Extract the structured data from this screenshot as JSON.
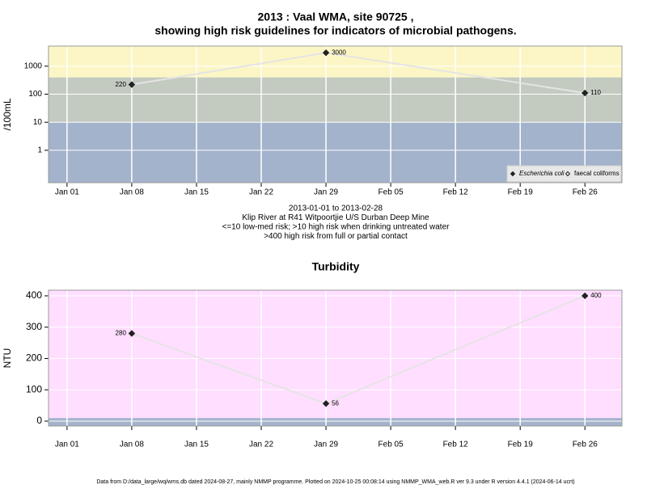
{
  "chart_data": [
    {
      "type": "line",
      "title": "2013 : Vaal WMA, site 90725 ,",
      "subtitle": "showing high risk guidelines for indicators of microbial pathogens.",
      "y_label": "/100mL",
      "log_scale": true,
      "x": [
        "2013-01-08",
        "2013-01-29",
        "2013-02-26"
      ],
      "xlim": [
        "2012-12-30",
        "2013-03-02"
      ],
      "xticks": [
        {
          "value": "2013-01-01",
          "label": "Jan 01"
        },
        {
          "value": "2013-01-08",
          "label": "Jan 08"
        },
        {
          "value": "2013-01-15",
          "label": "Jan 15"
        },
        {
          "value": "2013-01-22",
          "label": "Jan 22"
        },
        {
          "value": "2013-01-29",
          "label": "Jan 29"
        },
        {
          "value": "2013-02-05",
          "label": "Feb 05"
        },
        {
          "value": "2013-02-12",
          "label": "Feb 12"
        },
        {
          "value": "2013-02-19",
          "label": "Feb 19"
        },
        {
          "value": "2013-02-26",
          "label": "Feb 26"
        }
      ],
      "ylim": [
        0.07,
        5200
      ],
      "yticks": [
        1,
        10,
        100,
        1000
      ],
      "grid": true,
      "thresholds": [
        10,
        400
      ],
      "band_colors": [
        "#a3b3cc",
        "#c3cbc0",
        "#fcf6c6"
      ],
      "line_color": "#e4e4e4",
      "legend": "bottom-right",
      "series": [
        {
          "name": "Escherichia coli",
          "color": "#222222",
          "marker": "filled",
          "values": [
            220,
            3000,
            110
          ]
        },
        {
          "name": "faecal coliforms",
          "color": "#222222",
          "marker": "open",
          "values": [
            null,
            null,
            null
          ]
        }
      ],
      "notes": [
        "2013-01-01 to 2013-02-28",
        "Klip River at R41 Witpoortjie U/S Durban Deep Mine",
        "<=10 low-med risk; >10 high risk when drinking untreated water",
        ">400 high risk from full or partial contact"
      ]
    },
    {
      "type": "line",
      "title": "Turbidity",
      "y_label": "NTU",
      "log_scale": false,
      "x": [
        "2013-01-08",
        "2013-01-29",
        "2013-02-26"
      ],
      "xlim": [
        "2012-12-30",
        "2013-03-02"
      ],
      "xticks": [
        {
          "value": "2013-01-01",
          "label": "Jan 01"
        },
        {
          "value": "2013-01-08",
          "label": "Jan 08"
        },
        {
          "value": "2013-01-15",
          "label": "Jan 15"
        },
        {
          "value": "2013-01-22",
          "label": "Jan 22"
        },
        {
          "value": "2013-01-29",
          "label": "Jan 29"
        },
        {
          "value": "2013-02-05",
          "label": "Feb 05"
        },
        {
          "value": "2013-02-12",
          "label": "Feb 12"
        },
        {
          "value": "2013-02-19",
          "label": "Feb 19"
        },
        {
          "value": "2013-02-26",
          "label": "Feb 26"
        }
      ],
      "ylim": [
        -15.5,
        418
      ],
      "yticks": [
        0,
        100,
        200,
        300,
        400
      ],
      "grid": true,
      "thresholds": [
        10
      ],
      "band_colors": [
        "#a3b3cc",
        "#ffdeff"
      ],
      "line_color": "#e4e4e4",
      "series": [
        {
          "color": "#222222",
          "marker": "filled",
          "values": [
            280,
            56,
            400
          ]
        }
      ]
    }
  ],
  "footer": "Data from D:/data_large/wq/wms.db dated 2024-08-27, mainly NMMP programme. Plotted on 2024-10-25 00:08:14 using NMMP_WMA_web.R ver 9.3 under R version 4.4.1 (2024-06-14 ucrt)"
}
